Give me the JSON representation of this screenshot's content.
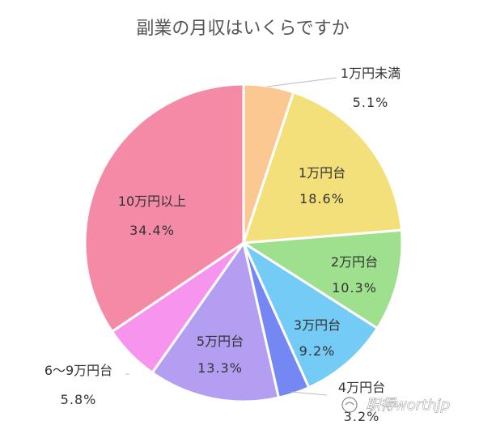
{
  "chart_data": {
    "type": "pie",
    "title": "副業の月収はいくらですか",
    "slices": [
      {
        "label": "1万円未満",
        "value": 5.1,
        "display": "5.1%",
        "color": "#fbc892"
      },
      {
        "label": "1万円台",
        "value": 18.6,
        "display": "18.6%",
        "color": "#f3e07a"
      },
      {
        "label": "2万円台",
        "value": 10.3,
        "display": "10.3%",
        "color": "#9fe08e"
      },
      {
        "label": "3万円台",
        "value": 9.2,
        "display": "9.2%",
        "color": "#74cbf5"
      },
      {
        "label": "4万円台",
        "value": 3.2,
        "display": "3.2%",
        "color": "#7487f2"
      },
      {
        "label": "5万円台",
        "value": 13.3,
        "display": "13.3%",
        "color": "#b39ef2"
      },
      {
        "label": "6～9万円台",
        "value": 5.8,
        "display": "5.8%",
        "color": "#f794ee"
      },
      {
        "label": "10万円以上",
        "value": 34.4,
        "display": "34.4%",
        "color": "#f58aa6"
      }
    ]
  },
  "watermark": "职得worthjp"
}
